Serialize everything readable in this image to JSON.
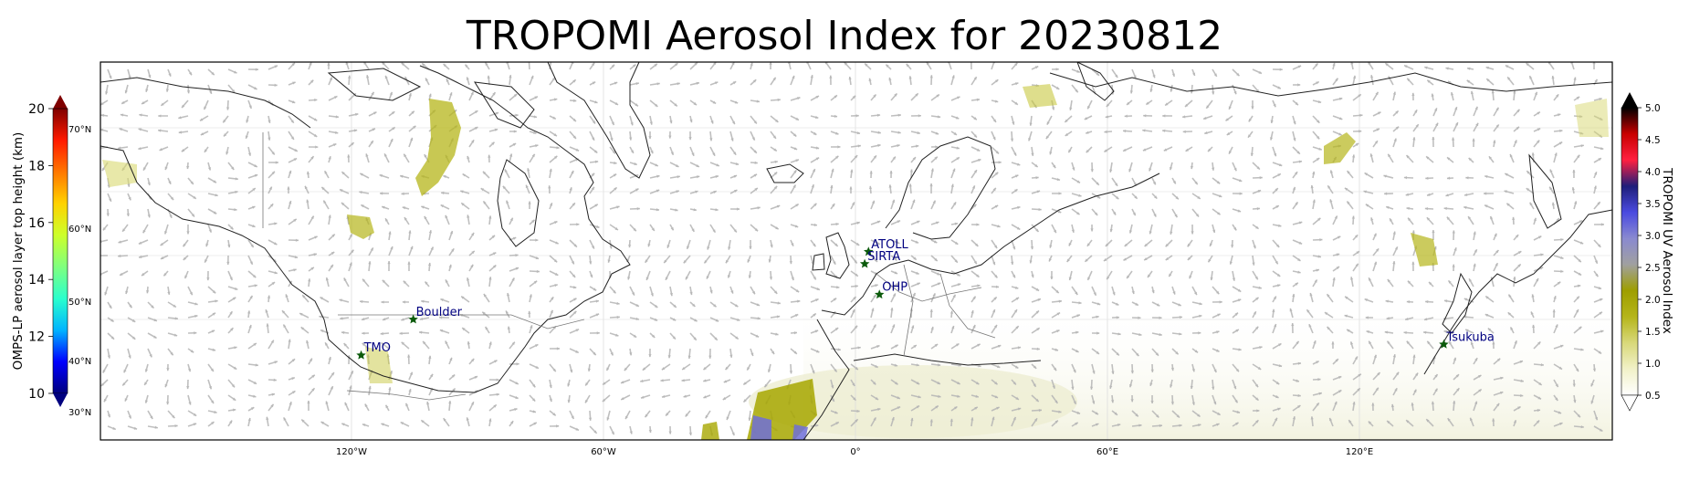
{
  "title": "TROPOMI Aerosol Index for 20230812",
  "left_colorbar": {
    "label": "OMPS-LP aerosol layer top height (km)",
    "ticks": [
      "20",
      "18",
      "16",
      "14",
      "12",
      "10"
    ],
    "lat_labels": [
      "70°N",
      "60°N",
      "50°N",
      "40°N",
      "30°N"
    ],
    "colors": [
      "#00007f",
      "#0000ff",
      "#00b4ff",
      "#2affcd",
      "#7fff7f",
      "#cdff2a",
      "#ffd200",
      "#ff7700",
      "#ff1a00",
      "#7f0000"
    ]
  },
  "right_colorbar": {
    "label": "TROPOMI UV Aerosol Index",
    "ticks": [
      "5.0",
      "4.5",
      "4.0",
      "3.5",
      "3.0",
      "2.5",
      "2.0",
      "1.5",
      "1.0",
      "0.5"
    ],
    "colors": [
      "#ffffff",
      "#f1f1c8",
      "#d8d87a",
      "#b5b51a",
      "#9e9e00",
      "#a0a0a0",
      "#8a8ad0",
      "#4a4ae0",
      "#1e1e7a",
      "#ff2040",
      "#c80000",
      "#000000"
    ]
  },
  "map": {
    "lon_labels": [
      "120°W",
      "60°W",
      "0°",
      "60°E",
      "120°E"
    ],
    "arrow_color": "#b5b5b5",
    "coast_color": "#222222",
    "station_color": "#0b5a0b",
    "station_label_color": "#000080"
  },
  "stations": [
    {
      "name": "ATOLL",
      "lon": 3.1,
      "lat": 50.6
    },
    {
      "name": "SIRTA",
      "lon": 2.2,
      "lat": 48.7
    },
    {
      "name": "OHP",
      "lon": 5.7,
      "lat": 43.9
    },
    {
      "name": "Boulder",
      "lon": -105.3,
      "lat": 40.0
    },
    {
      "name": "TMO",
      "lon": -117.7,
      "lat": 34.4
    },
    {
      "name": "Tsukuba",
      "lon": 140.1,
      "lat": 36.1
    }
  ]
}
